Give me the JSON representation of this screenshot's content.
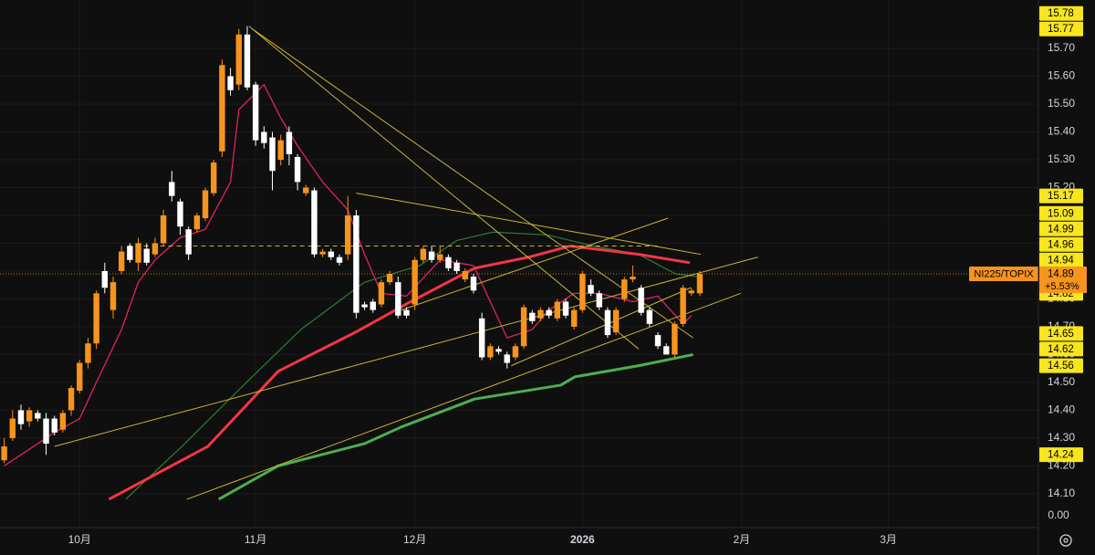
{
  "chart_data": {
    "type": "candlestick",
    "symbol_label": "NI225/TOPIX",
    "last_price": 14.89,
    "last_change": "+5.53%",
    "up_color": "#f7941d",
    "down_color": "#ffffff",
    "grid": true,
    "xlim": [
      -0.5,
      123.4
    ],
    "xticks": [
      {
        "value": 9,
        "label": "10月"
      },
      {
        "value": 30,
        "label": "11月"
      },
      {
        "value": 49,
        "label": "12月"
      },
      {
        "value": 69,
        "label": "2026"
      },
      {
        "value": 88,
        "label": "2月"
      },
      {
        "value": 105.5,
        "label": "3月"
      }
    ],
    "ylim": [
      14.07,
      15.874
    ],
    "yticks": [
      {
        "value": 15.7,
        "label": "15.70"
      },
      {
        "value": 15.6,
        "label": "15.60"
      },
      {
        "value": 15.5,
        "label": "15.50"
      },
      {
        "value": 15.4,
        "label": "15.40"
      },
      {
        "value": 15.3,
        "label": "15.30"
      },
      {
        "value": 15.2,
        "label": "15.20"
      },
      {
        "value": 15.1,
        "label": "15.10"
      },
      {
        "value": 15.0,
        "label": "15.00"
      },
      {
        "value": 14.9,
        "label": "14.90"
      },
      {
        "value": 14.8,
        "label": "14.80"
      },
      {
        "value": 14.7,
        "label": "14.70"
      },
      {
        "value": 14.6,
        "label": "14.60"
      },
      {
        "value": 14.5,
        "label": "14.50"
      },
      {
        "value": 14.4,
        "label": "14.40"
      },
      {
        "value": 14.3,
        "label": "14.30"
      },
      {
        "value": 14.2,
        "label": "14.20"
      },
      {
        "value": 14.1,
        "label": "14.10"
      }
    ],
    "volume_axis_label": "0.00",
    "price_labels": [
      15.78,
      15.77,
      15.17,
      15.09,
      14.99,
      14.96,
      14.94,
      14.82,
      14.65,
      14.62,
      14.56,
      14.24
    ],
    "price_label_color": "#f7e51e",
    "open": [
      14.22,
      14.3,
      14.4,
      14.36,
      14.39,
      14.37,
      14.37,
      14.33,
      14.4,
      14.47,
      14.57,
      14.64,
      14.9,
      14.76,
      14.9,
      14.99,
      14.93,
      14.98,
      14.96,
      15.0,
      15.22,
      15.15,
      15.05,
      15.05,
      15.09,
      15.18,
      15.33,
      15.6,
      15.57,
      15.75,
      15.57,
      15.4,
      15.38,
      15.3,
      15.4,
      15.31,
      15.18,
      15.19,
      14.96,
      14.97,
      14.95,
      14.96,
      15.1,
      14.78,
      14.79,
      14.78,
      14.86,
      14.86,
      14.76,
      14.78,
      14.94,
      14.97,
      14.94,
      14.95,
      14.93,
      14.87,
      14.88,
      14.73,
      14.59,
      14.62,
      14.6,
      14.59,
      14.63,
      14.75,
      14.73,
      14.76,
      14.73,
      14.79,
      14.7,
      14.76,
      14.85,
      14.82,
      14.76,
      14.68,
      14.8,
      14.87,
      14.84,
      14.76,
      14.67,
      14.63,
      14.6,
      14.71,
      14.82,
      14.82
    ],
    "high": [
      14.3,
      14.4,
      14.42,
      14.41,
      14.4,
      14.39,
      14.38,
      14.4,
      14.49,
      14.58,
      14.66,
      14.83,
      14.93,
      14.88,
      14.99,
      15.0,
      15.02,
      15.0,
      15.02,
      15.12,
      15.26,
      15.16,
      15.06,
      15.11,
      15.2,
      15.3,
      15.66,
      15.63,
      15.77,
      15.78,
      15.58,
      15.42,
      15.4,
      15.39,
      15.42,
      15.32,
      15.21,
      15.2,
      14.98,
      14.98,
      14.96,
      15.17,
      15.12,
      14.79,
      14.8,
      14.87,
      14.9,
      14.88,
      14.77,
      14.95,
      14.99,
      14.99,
      14.99,
      14.96,
      14.94,
      14.91,
      14.89,
      14.75,
      14.64,
      14.63,
      14.61,
      14.64,
      14.78,
      14.76,
      14.77,
      14.77,
      14.8,
      14.8,
      14.77,
      14.9,
      14.87,
      14.83,
      14.77,
      14.77,
      14.88,
      14.92,
      14.85,
      14.77,
      14.68,
      14.64,
      14.72,
      14.85,
      14.84,
      14.9
    ],
    "low": [
      14.21,
      14.29,
      14.33,
      14.34,
      14.36,
      14.24,
      14.31,
      14.32,
      14.38,
      14.46,
      14.55,
      14.62,
      14.82,
      14.73,
      14.89,
      14.93,
      14.9,
      14.92,
      14.95,
      14.99,
      15.15,
      15.03,
      14.94,
      15.04,
      15.08,
      15.17,
      15.31,
      15.53,
      15.55,
      15.55,
      15.35,
      15.34,
      15.19,
      15.28,
      15.28,
      15.19,
      15.17,
      14.95,
      14.95,
      14.94,
      14.92,
      14.94,
      14.73,
      14.76,
      14.75,
      14.77,
      14.85,
      14.73,
      14.73,
      14.76,
      14.93,
      14.93,
      14.93,
      14.9,
      14.89,
      14.86,
      14.82,
      14.58,
      14.58,
      14.6,
      14.55,
      14.58,
      14.62,
      14.71,
      14.72,
      14.73,
      14.72,
      14.73,
      14.69,
      14.75,
      14.81,
      14.76,
      14.66,
      14.67,
      14.79,
      14.86,
      14.74,
      14.7,
      14.62,
      14.6,
      14.59,
      14.7,
      14.81,
      14.81
    ],
    "close": [
      14.27,
      14.37,
      14.35,
      14.4,
      14.37,
      14.28,
      14.32,
      14.39,
      14.48,
      14.57,
      14.64,
      14.82,
      14.84,
      14.86,
      14.97,
      14.94,
      15.0,
      14.93,
      15.0,
      15.1,
      15.17,
      15.06,
      14.96,
      15.1,
      15.19,
      15.29,
      15.64,
      15.55,
      15.75,
      15.56,
      15.37,
      15.36,
      15.26,
      15.37,
      15.32,
      15.22,
      15.2,
      14.96,
      14.97,
      14.95,
      14.93,
      15.1,
      14.75,
      14.77,
      14.76,
      14.86,
      14.89,
      14.74,
      14.74,
      14.94,
      14.98,
      14.94,
      14.96,
      14.91,
      14.9,
      14.9,
      14.83,
      14.59,
      14.63,
      14.61,
      14.57,
      14.63,
      14.77,
      14.72,
      14.76,
      14.74,
      14.79,
      14.74,
      14.76,
      14.89,
      14.82,
      14.77,
      14.67,
      14.76,
      14.87,
      14.88,
      14.75,
      14.71,
      14.63,
      14.6,
      14.71,
      14.84,
      14.83,
      14.89
    ],
    "moving_averages": [
      {
        "color": "#e0245e",
        "width": 1.3,
        "x": [
          0,
          6,
          9,
          11,
          14,
          16,
          18,
          21,
          24,
          27,
          28,
          31,
          33,
          35,
          38,
          41,
          43,
          45,
          48,
          52,
          56,
          58,
          60,
          63,
          65,
          68,
          71,
          75,
          78,
          81,
          82
        ],
        "values": [
          14.2,
          14.32,
          14.37,
          14.5,
          14.69,
          14.86,
          14.94,
          15.02,
          15.05,
          15.22,
          15.48,
          15.57,
          15.45,
          15.35,
          15.22,
          15.12,
          14.96,
          14.82,
          14.81,
          14.94,
          14.92,
          14.79,
          14.66,
          14.69,
          14.76,
          14.82,
          14.82,
          14.79,
          14.81,
          14.71,
          14.74
        ]
      },
      {
        "color": "#2e7d32",
        "width": 1.2,
        "x": [
          14.5,
          21.2,
          28.9,
          35.4,
          43,
          49.6,
          54,
          58.3,
          64.8,
          70.3,
          75.7,
          80.1,
          82.8
        ],
        "values": [
          14.08,
          14.27,
          14.5,
          14.69,
          14.86,
          14.92,
          15.01,
          15.04,
          15.03,
          14.99,
          14.96,
          14.89,
          14.88
        ]
      },
      {
        "color": "#f23645",
        "width": 3,
        "x": [
          12.5,
          24.3,
          32.7,
          41.9,
          48.5,
          56.1,
          62.6,
          67.5,
          75.7,
          81.8
        ],
        "values": [
          14.08,
          14.27,
          14.54,
          14.68,
          14.79,
          14.91,
          14.95,
          14.99,
          14.96,
          14.93
        ]
      },
      {
        "color": "#4caf50",
        "width": 3,
        "x": [
          25.6,
          32.7,
          43,
          47.4,
          56.1,
          66.4,
          68.1,
          75.7,
          82.2
        ],
        "values": [
          14.08,
          14.2,
          14.28,
          14.34,
          14.44,
          14.49,
          14.52,
          14.56,
          14.6
        ]
      }
    ],
    "trendline_color": "#c9b43a",
    "trendlines": [
      {
        "x": [
          6,
          89.9
        ],
        "values": [
          14.27,
          14.95
        ]
      },
      {
        "x": [
          21.8,
          87.9
        ],
        "values": [
          14.08,
          14.82
        ]
      },
      {
        "x": [
          29.2,
          75.7
        ],
        "values": [
          15.78,
          14.62
        ]
      },
      {
        "x": [
          29.6,
          82.2
        ],
        "values": [
          15.77,
          14.66
        ]
      },
      {
        "x": [
          42,
          83.1
        ],
        "values": [
          15.18,
          14.96
        ]
      },
      {
        "x": [
          47.4,
          79.2
        ],
        "values": [
          14.76,
          15.09
        ]
      },
      {
        "x": [
          60.5,
          81.9
        ],
        "values": [
          14.56,
          14.84
        ]
      }
    ],
    "reference_line": {
      "value": 14.99,
      "x": [
        14.7,
        78.3
      ]
    }
  }
}
